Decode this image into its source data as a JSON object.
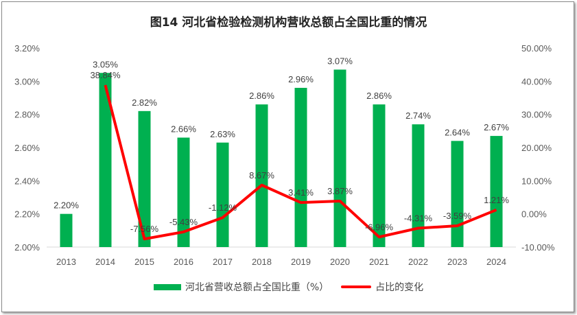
{
  "chart_data": {
    "type": "bar+line",
    "title": "图14  河北省检验检测机构营收总额占全国比重的情况",
    "categories": [
      "2013",
      "2014",
      "2015",
      "2016",
      "2017",
      "2018",
      "2019",
      "2020",
      "2021",
      "2022",
      "2023",
      "2024"
    ],
    "series": [
      {
        "name": "河北省营收总额占全国比重（%）",
        "type": "bar",
        "axis": "left",
        "color": "#00b050",
        "values": [
          2.2,
          3.05,
          2.82,
          2.66,
          2.63,
          2.86,
          2.96,
          3.07,
          2.86,
          2.74,
          2.64,
          2.67
        ],
        "labels": [
          "2.20%",
          "3.05%",
          "2.82%",
          "2.66%",
          "2.63%",
          "2.86%",
          "2.96%",
          "3.07%",
          "2.86%",
          "2.74%",
          "2.64%",
          "2.67%"
        ]
      },
      {
        "name": "占比的变化",
        "type": "line",
        "axis": "right",
        "color": "#ff0000",
        "values": [
          null,
          38.84,
          -7.56,
          -5.43,
          -1.12,
          8.67,
          3.41,
          3.87,
          -6.96,
          -4.31,
          -3.59,
          1.21
        ],
        "labels": [
          "",
          "38.84%",
          "-7.56%",
          "-5.43%",
          "-1.12%",
          "8.67%",
          "3.41%",
          "3.87%",
          "-6.96%",
          "-4.31%",
          "-3.59%",
          "1.21%"
        ]
      }
    ],
    "left_axis": {
      "ylim": [
        2.0,
        3.2
      ],
      "ticks": [
        "2.00%",
        "2.20%",
        "2.40%",
        "2.60%",
        "2.80%",
        "3.00%",
        "3.20%"
      ]
    },
    "right_axis": {
      "ylim": [
        -10,
        50
      ],
      "ticks": [
        "-10.00%",
        "0.00%",
        "10.00%",
        "20.00%",
        "30.00%",
        "40.00%",
        "50.00%"
      ]
    },
    "grid": false,
    "legend": "bottom"
  }
}
